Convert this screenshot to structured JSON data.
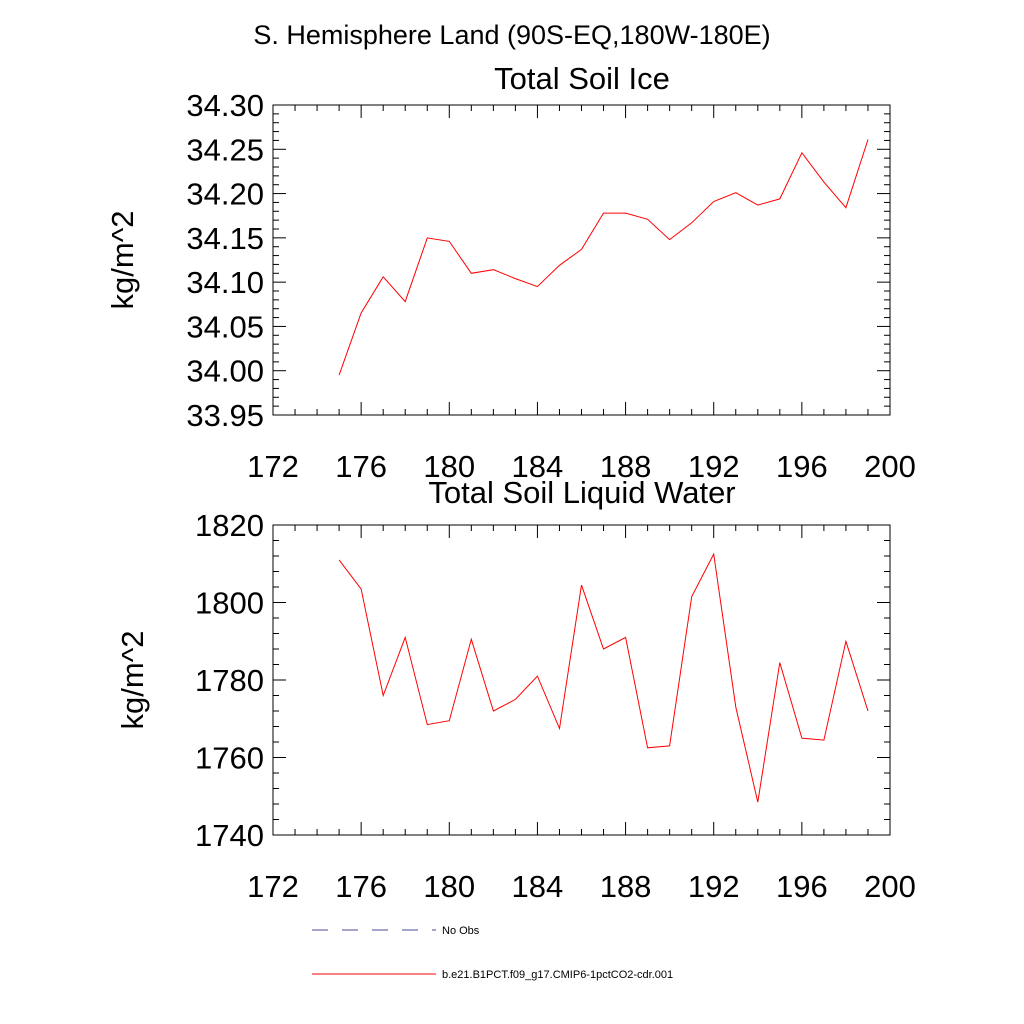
{
  "figure_title": "S. Hemisphere Land (90S-EQ,180W-180E)",
  "colors": {
    "model_line": "#ff0000",
    "obs_line": "#4a4a9a",
    "axes": "#000000"
  },
  "legend": {
    "obs_label": "No Obs",
    "model_label": "b.e21.B1PCT.f09_g17.CMIP6-1pctCO2-cdr.001"
  },
  "chart_data": [
    {
      "type": "line",
      "title": "Total Soil Ice",
      "xlabel": "",
      "ylabel": "kg/m^2",
      "xlim": [
        172,
        200
      ],
      "ylim": [
        33.95,
        34.3
      ],
      "xticks": [
        "172",
        "176",
        "180",
        "184",
        "188",
        "192",
        "196",
        "200"
      ],
      "yticks": [
        "34.30",
        "34.25",
        "34.20",
        "34.15",
        "34.10",
        "34.05",
        "34.00",
        "33.95"
      ],
      "grid": false,
      "series": [
        {
          "name": "b.e21.B1PCT.f09_g17.CMIP6-1pctCO2-cdr.001",
          "x": [
            175,
            176,
            177,
            178,
            179,
            180,
            181,
            182,
            183,
            184,
            185,
            186,
            187,
            188,
            189,
            190,
            191,
            192,
            193,
            194,
            195,
            196,
            197,
            198,
            199
          ],
          "y": [
            33.995,
            34.065,
            34.106,
            34.078,
            34.15,
            34.146,
            34.11,
            34.114,
            34.104,
            34.095,
            34.119,
            34.137,
            34.178,
            34.178,
            34.171,
            34.148,
            34.167,
            34.191,
            34.201,
            34.187,
            34.194,
            34.246,
            34.213,
            34.184,
            34.261
          ]
        }
      ]
    },
    {
      "type": "line",
      "title": "Total Soil Liquid Water",
      "xlabel": "",
      "ylabel": "kg/m^2",
      "xlim": [
        172,
        200
      ],
      "ylim": [
        1740,
        1820
      ],
      "xticks": [
        "172",
        "176",
        "180",
        "184",
        "188",
        "192",
        "196",
        "200"
      ],
      "yticks": [
        "1820",
        "1800",
        "1780",
        "1760",
        "1740"
      ],
      "grid": false,
      "series": [
        {
          "name": "b.e21.B1PCT.f09_g17.CMIP6-1pctCO2-cdr.001",
          "x": [
            175,
            176,
            177,
            178,
            179,
            180,
            181,
            182,
            183,
            184,
            185,
            186,
            187,
            188,
            189,
            190,
            191,
            192,
            193,
            194,
            195,
            196,
            197,
            198,
            199
          ],
          "y": [
            1811,
            1803.5,
            1776,
            1791,
            1768.5,
            1769.5,
            1790.5,
            1772,
            1775,
            1781,
            1767.5,
            1804.5,
            1788,
            1791,
            1762.5,
            1763,
            1801.5,
            1812.5,
            1773,
            1748.5,
            1784.5,
            1765,
            1764.5,
            1790,
            1772
          ]
        }
      ]
    }
  ]
}
